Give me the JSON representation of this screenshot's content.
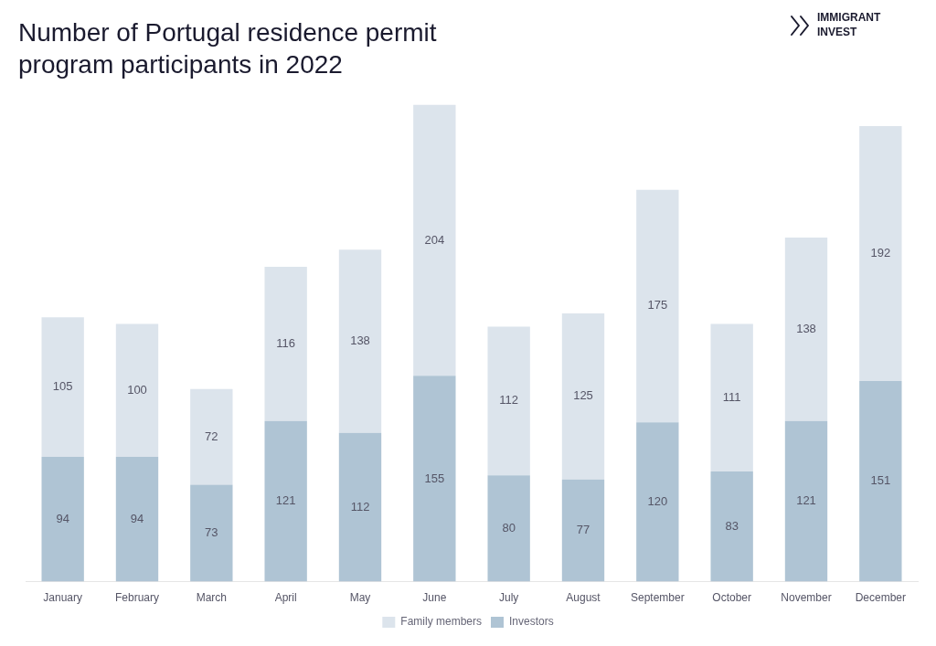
{
  "chart_data": {
    "type": "bar",
    "title": "Number of Portugal residence permit",
    "subtitle": "program participants in 2022",
    "annotations": [
      "IMMIGRANT",
      "INVEST"
    ],
    "categories": [
      "January",
      "February",
      "March",
      "April",
      "May",
      "June",
      "July",
      "August",
      "September",
      "October",
      "November",
      "December"
    ],
    "series": [
      {
        "name": "Investors",
        "color": "#afc4d4",
        "values": [
          94,
          94,
          73,
          121,
          112,
          155,
          80,
          77,
          120,
          83,
          121,
          151
        ]
      },
      {
        "name": "Family members",
        "color": "#dce4ec",
        "values": [
          105,
          100,
          72,
          116,
          138,
          204,
          112,
          125,
          175,
          111,
          138,
          192
        ]
      }
    ],
    "stacked": true,
    "data_labels": true,
    "ylim": [
      0,
      360
    ],
    "yticks": [
      0,
      20,
      40,
      60,
      80,
      100,
      120,
      140,
      160,
      180,
      200,
      220,
      240,
      260,
      280,
      300,
      320,
      340,
      360
    ],
    "grid": false,
    "legend": "bottom",
    "tick_labels": "x"
  }
}
